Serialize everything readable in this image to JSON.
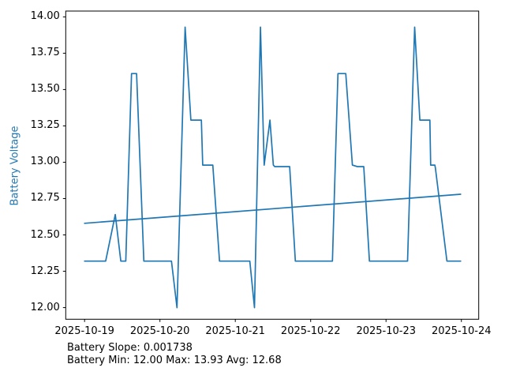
{
  "figure": {
    "background": "#ffffff",
    "spine_color": "#000000",
    "text_color": "#000000"
  },
  "chart_data": {
    "type": "line",
    "title": "",
    "xlabel": "",
    "ylabel": "Battery Voltage",
    "ylabel_color": "#1f77b4",
    "grid": false,
    "legend": false,
    "xlim_days": [
      -0.25,
      5.23
    ],
    "ylim": [
      11.92,
      14.04
    ],
    "x_ticks": [
      {
        "day": 0,
        "label": "2025-10-19"
      },
      {
        "day": 1,
        "label": "2025-10-20"
      },
      {
        "day": 2,
        "label": "2025-10-21"
      },
      {
        "day": 3,
        "label": "2025-10-22"
      },
      {
        "day": 4,
        "label": "2025-10-23"
      },
      {
        "day": 5,
        "label": "2025-10-24"
      }
    ],
    "y_ticks": [
      {
        "value": 12.0,
        "label": "12.00"
      },
      {
        "value": 12.25,
        "label": "12.25"
      },
      {
        "value": 12.5,
        "label": "12.50"
      },
      {
        "value": 12.75,
        "label": "12.75"
      },
      {
        "value": 13.0,
        "label": "13.00"
      },
      {
        "value": 13.25,
        "label": "13.25"
      },
      {
        "value": 13.5,
        "label": "13.50"
      },
      {
        "value": 13.75,
        "label": "13.75"
      },
      {
        "value": 14.0,
        "label": "14.00"
      }
    ],
    "series": [
      {
        "name": "Battery Voltage",
        "color": "#1f77b4",
        "points_days_volts": [
          [
            0.0,
            12.32
          ],
          [
            0.28,
            12.32
          ],
          [
            0.408,
            12.64
          ],
          [
            0.481,
            12.32
          ],
          [
            0.547,
            12.32
          ],
          [
            0.623,
            13.61
          ],
          [
            0.69,
            13.61
          ],
          [
            0.787,
            12.32
          ],
          [
            1.153,
            12.32
          ],
          [
            1.226,
            12.0
          ],
          [
            1.334,
            13.93
          ],
          [
            1.411,
            13.29
          ],
          [
            1.55,
            13.29
          ],
          [
            1.568,
            12.98
          ],
          [
            1.702,
            12.98
          ],
          [
            1.791,
            12.32
          ],
          [
            2.193,
            12.32
          ],
          [
            2.254,
            12.0
          ],
          [
            2.334,
            13.93
          ],
          [
            2.383,
            12.98
          ],
          [
            2.46,
            13.29
          ],
          [
            2.505,
            12.98
          ],
          [
            2.523,
            12.97
          ],
          [
            2.721,
            12.97
          ],
          [
            2.797,
            12.32
          ],
          [
            3.289,
            12.32
          ],
          [
            3.362,
            13.61
          ],
          [
            3.466,
            13.61
          ],
          [
            3.554,
            12.98
          ],
          [
            3.62,
            12.97
          ],
          [
            3.704,
            12.97
          ],
          [
            3.78,
            12.32
          ],
          [
            4.286,
            12.32
          ],
          [
            4.38,
            13.93
          ],
          [
            4.449,
            13.29
          ],
          [
            4.582,
            13.29
          ],
          [
            4.592,
            12.98
          ],
          [
            4.648,
            12.98
          ],
          [
            4.655,
            12.96
          ],
          [
            4.808,
            12.32
          ],
          [
            4.99,
            12.32
          ]
        ]
      },
      {
        "name": "Battery Trend",
        "color": "#1f77b4",
        "points_days_volts": [
          [
            0.0,
            12.58
          ],
          [
            4.99,
            12.78
          ]
        ]
      }
    ]
  },
  "annotations": {
    "slope": "Battery Slope: 0.001738",
    "minmax": "Battery Min: 12.00 Max: 13.93 Avg: 12.68"
  }
}
